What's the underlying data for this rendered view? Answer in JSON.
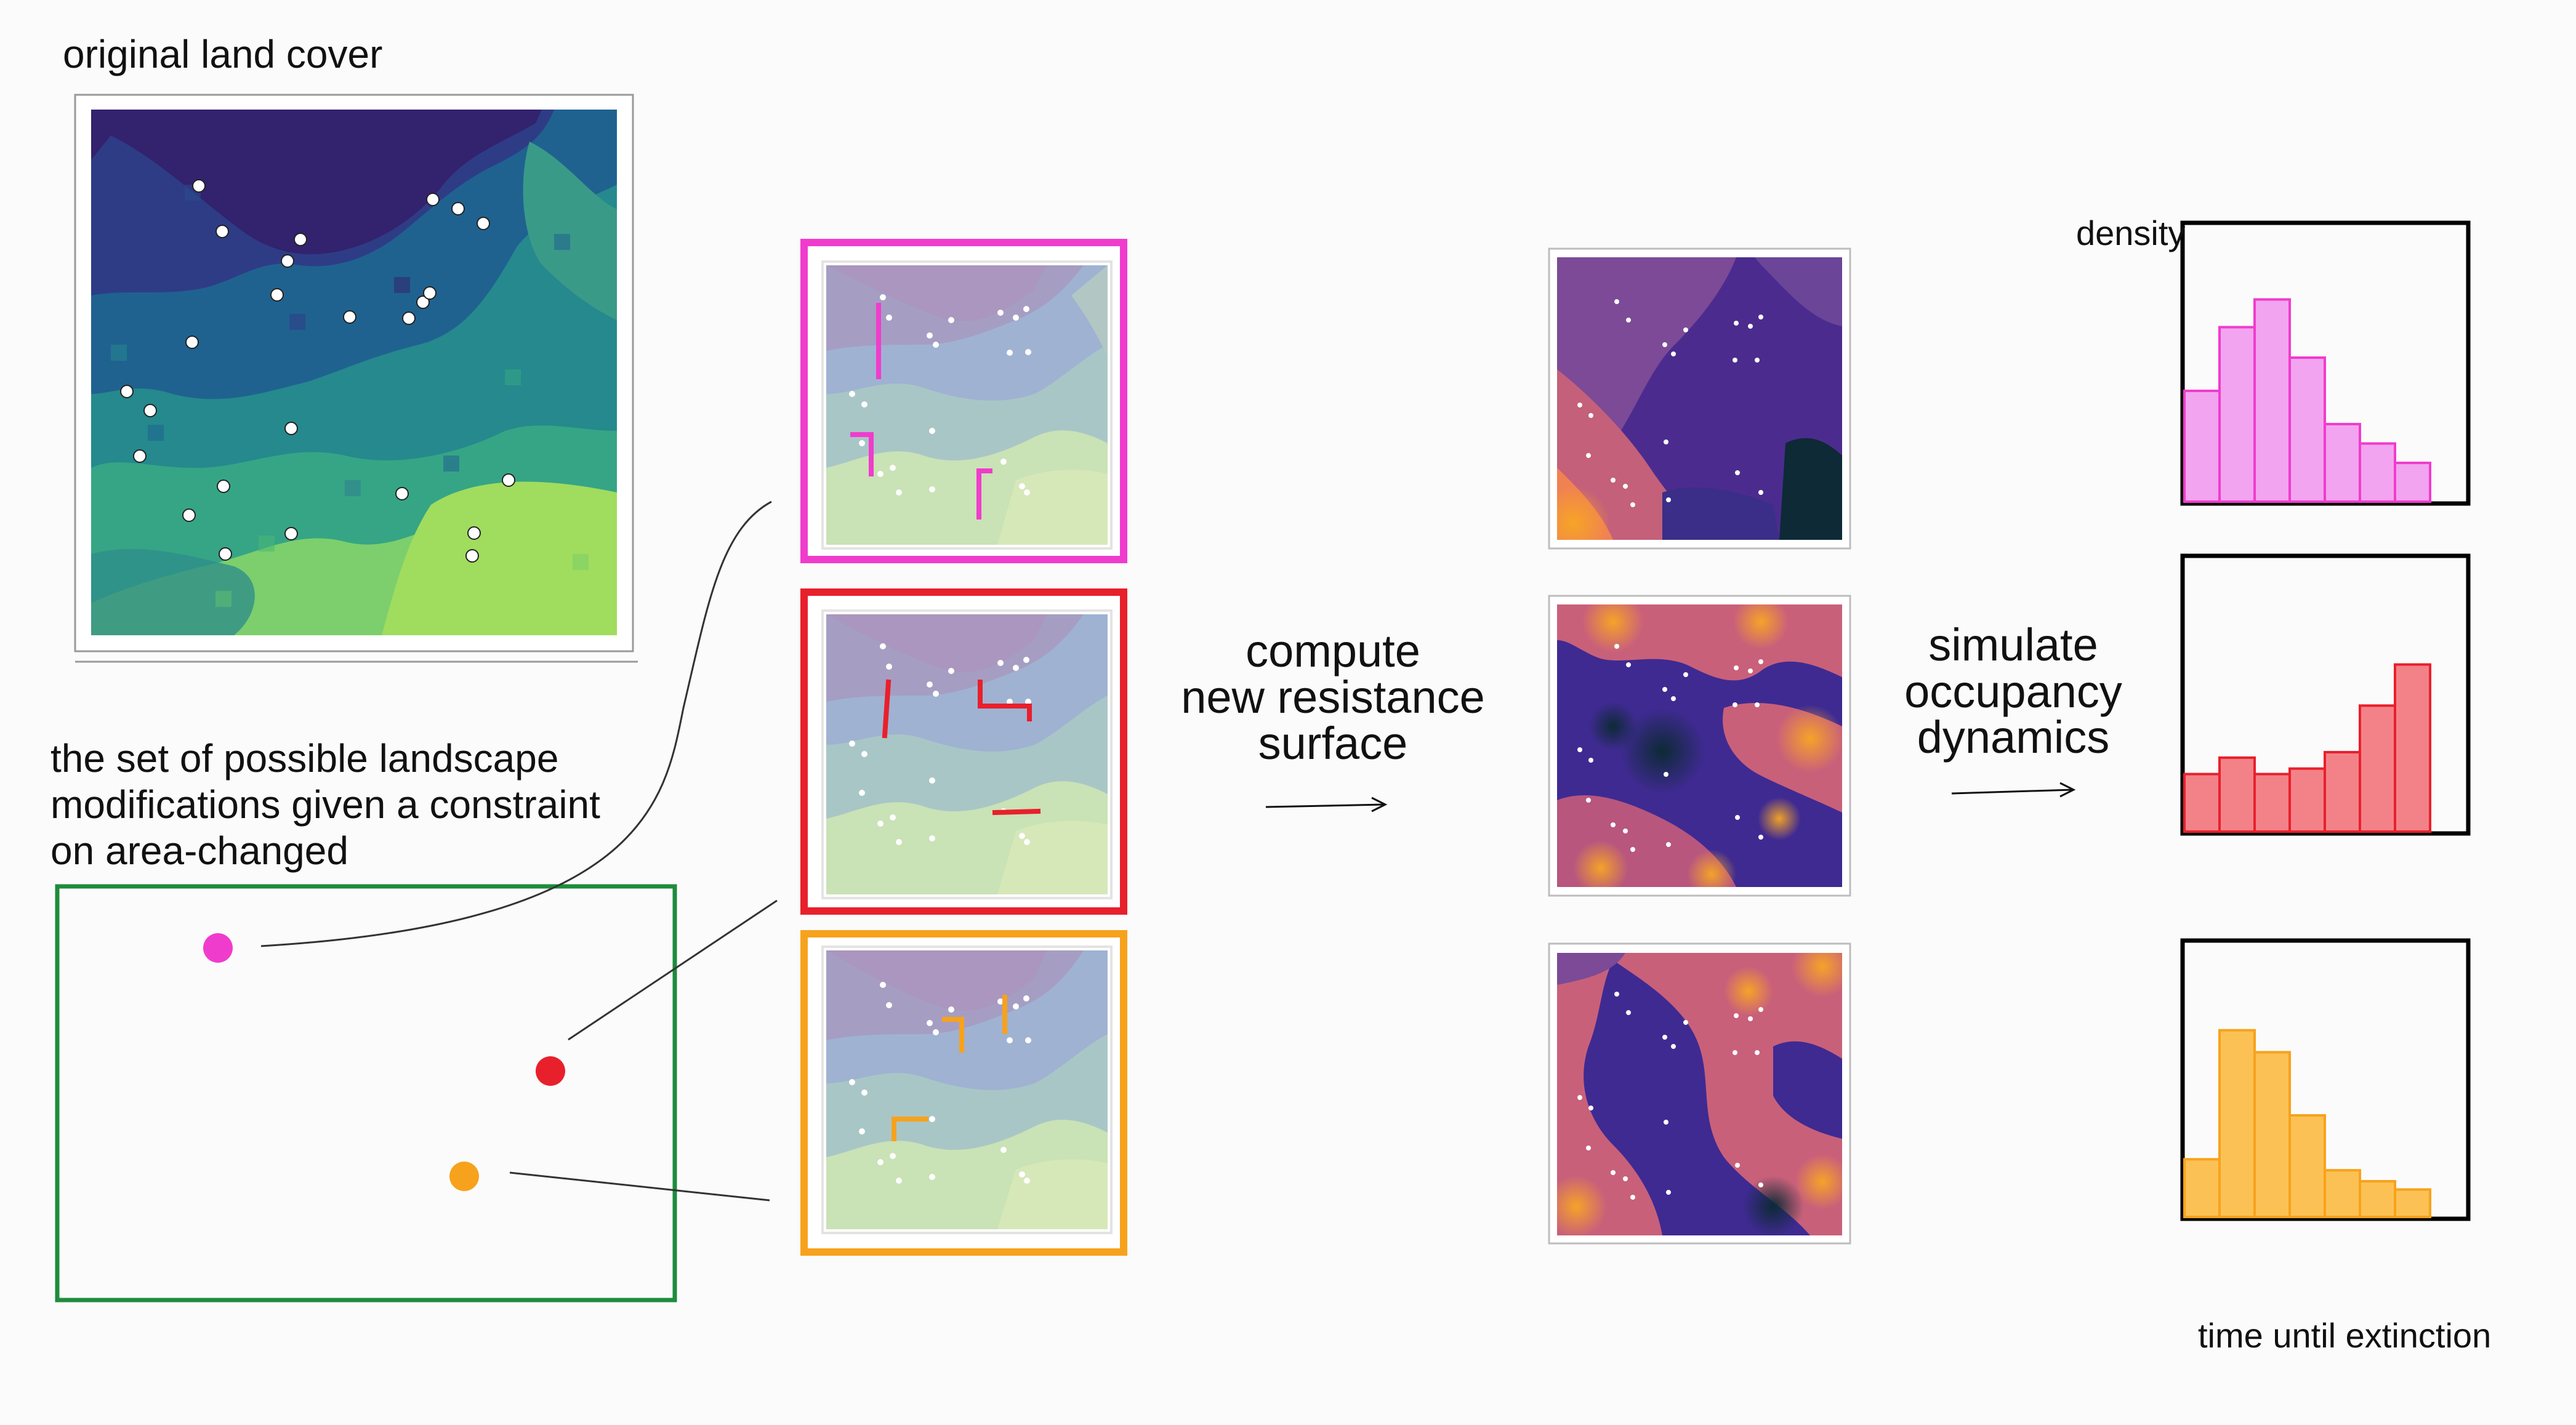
{
  "labels": {
    "original_land_cover": "original land cover",
    "modification_set_line1": "the set of possible landscape",
    "modification_set_line2": "modifications given a constraint",
    "modification_set_line3": "on area-changed",
    "compute_line1": "compute",
    "compute_line2": "new resistance",
    "compute_line3": "surface",
    "simulate_line1": "simulate",
    "simulate_line2": "occupancy",
    "simulate_line3": "dynamics",
    "density": "density",
    "time_until_extinction": "time until extinction"
  },
  "colors": {
    "magenta": "#f03ccc",
    "red": "#e8202c",
    "orange": "#f7a21c",
    "green_frame": "#1e8c3c",
    "magenta_fill": "#f2a4f0",
    "red_fill": "#f38288",
    "orange_fill": "#fcc154"
  },
  "modifications": [
    {
      "name": "magenta",
      "color": "#f03ccc"
    },
    {
      "name": "red",
      "color": "#e8202c"
    },
    {
      "name": "orange",
      "color": "#f7a21c"
    }
  ],
  "chart_data": [
    {
      "type": "bar",
      "name": "magenta",
      "values": [
        0.4,
        0.63,
        0.73,
        0.52,
        0.28,
        0.21,
        0.14
      ],
      "ylabel": "density",
      "xlabel": "time until extinction"
    },
    {
      "type": "bar",
      "name": "red",
      "values": [
        0.21,
        0.27,
        0.21,
        0.23,
        0.29,
        0.46,
        0.61
      ],
      "ylabel": "",
      "xlabel": ""
    },
    {
      "type": "bar",
      "name": "orange",
      "values": [
        0.21,
        0.68,
        0.6,
        0.37,
        0.17,
        0.13,
        0.1
      ],
      "ylabel": "",
      "xlabel": ""
    }
  ]
}
